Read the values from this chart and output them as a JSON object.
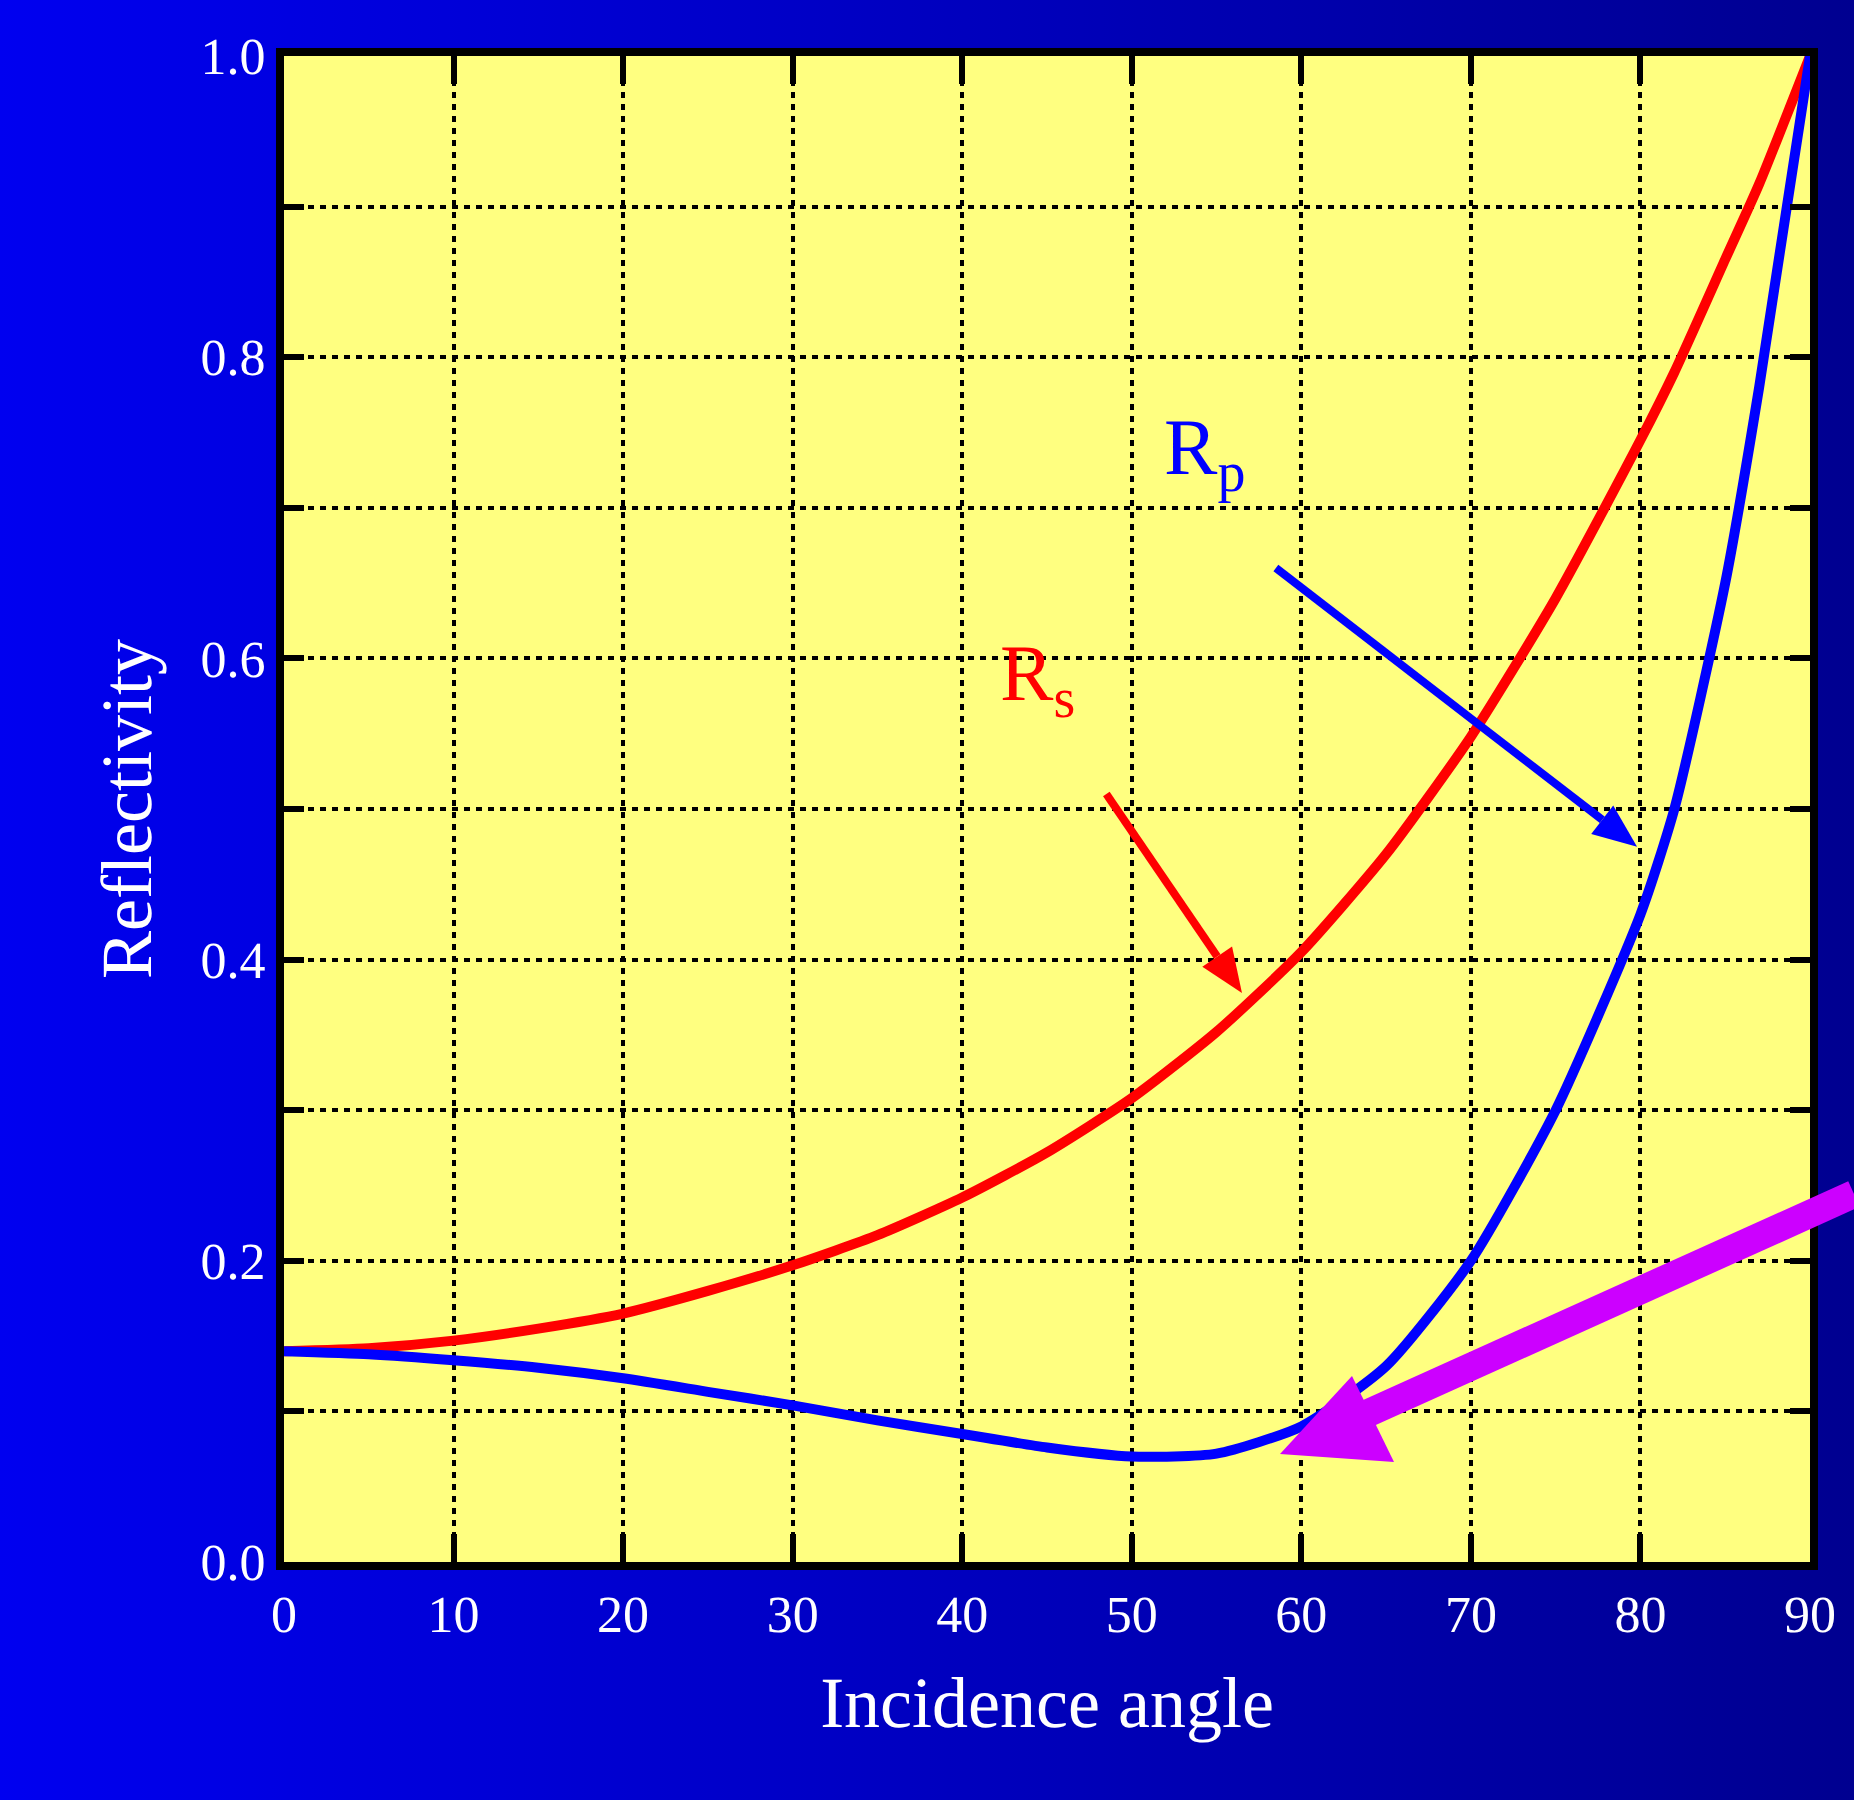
{
  "chart_data": {
    "type": "line",
    "xlabel": "Incidence angle",
    "ylabel": "Reflectivity",
    "x": [
      0,
      5,
      10,
      15,
      20,
      25,
      30,
      35,
      40,
      45,
      50,
      55,
      60,
      65,
      70,
      75,
      80,
      82,
      85,
      87,
      90
    ],
    "series": [
      {
        "name": "R$_{s}$",
        "color": "#ff0000",
        "values": [
          0.14,
          0.142,
          0.147,
          0.155,
          0.165,
          0.18,
          0.197,
          0.217,
          0.242,
          0.272,
          0.308,
          0.352,
          0.405,
          0.47,
          0.548,
          0.64,
          0.745,
          0.79,
          0.865,
          0.915,
          1.0
        ]
      },
      {
        "name": "R$_{p}$",
        "color": "#0000ff",
        "values": [
          0.14,
          0.138,
          0.134,
          0.129,
          0.122,
          0.113,
          0.104,
          0.094,
          0.085,
          0.076,
          0.07,
          0.072,
          0.09,
          0.13,
          0.2,
          0.3,
          0.43,
          0.5,
          0.65,
          0.78,
          1.0
        ]
      }
    ],
    "xlim": [
      0,
      90
    ],
    "xticks": [
      0,
      10,
      20,
      30,
      40,
      50,
      60,
      70,
      80,
      90
    ],
    "ylim": [
      0,
      1
    ],
    "yticks": [
      {
        "value": 0,
        "label": "0.0"
      },
      {
        "value": 0.1,
        "label": null
      },
      0.2,
      {
        "value": 0.3,
        "label": null
      },
      0.4,
      {
        "value": 0.5,
        "label": null
      },
      0.6,
      {
        "value": 0.7,
        "label": null
      },
      0.8,
      {
        "value": 0.9,
        "label": null
      },
      {
        "value": 1,
        "label": "1.0"
      }
    ],
    "grid": true,
    "legend": false,
    "marker": "none",
    "line_style": "solid"
  }
}
